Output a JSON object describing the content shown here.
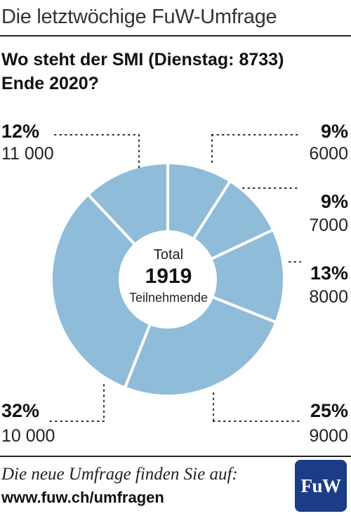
{
  "header": {
    "title": "Die letztwöchige FuW-Umfrage"
  },
  "question": {
    "line1": "Wo steht der SMI (Dienstag: 8733)",
    "line2": "Ende 2020?"
  },
  "center": {
    "label_top": "Total",
    "total": "1919",
    "label_bottom": "Teilnehmende"
  },
  "colors": {
    "slice_fill": "#8fbcd9",
    "slice_border": "#ffffff",
    "logo_bg": "#1b3c86",
    "dots": "#222222"
  },
  "chart_data": {
    "type": "pie",
    "variant": "donut",
    "categories": [
      "6000",
      "7000",
      "8000",
      "9000",
      "10 000",
      "11 000"
    ],
    "values": [
      9,
      9,
      13,
      25,
      32,
      12
    ],
    "value_labels": [
      "9%",
      "9%",
      "13%",
      "25%",
      "32%",
      "12%"
    ],
    "unit": "%"
  },
  "labels": {
    "s6000": {
      "pct": "9%",
      "val": "6000"
    },
    "s7000": {
      "pct": "9%",
      "val": "7000"
    },
    "s8000": {
      "pct": "13%",
      "val": "8000"
    },
    "s9000": {
      "pct": "25%",
      "val": "9000"
    },
    "s10000": {
      "pct": "32%",
      "val": "10 000"
    },
    "s11000": {
      "pct": "12%",
      "val": "11 000"
    }
  },
  "footer": {
    "line1": "Die neue Umfrage finden Sie auf:",
    "url": "www.fuw.ch/umfragen",
    "logo_text": "FuW"
  }
}
